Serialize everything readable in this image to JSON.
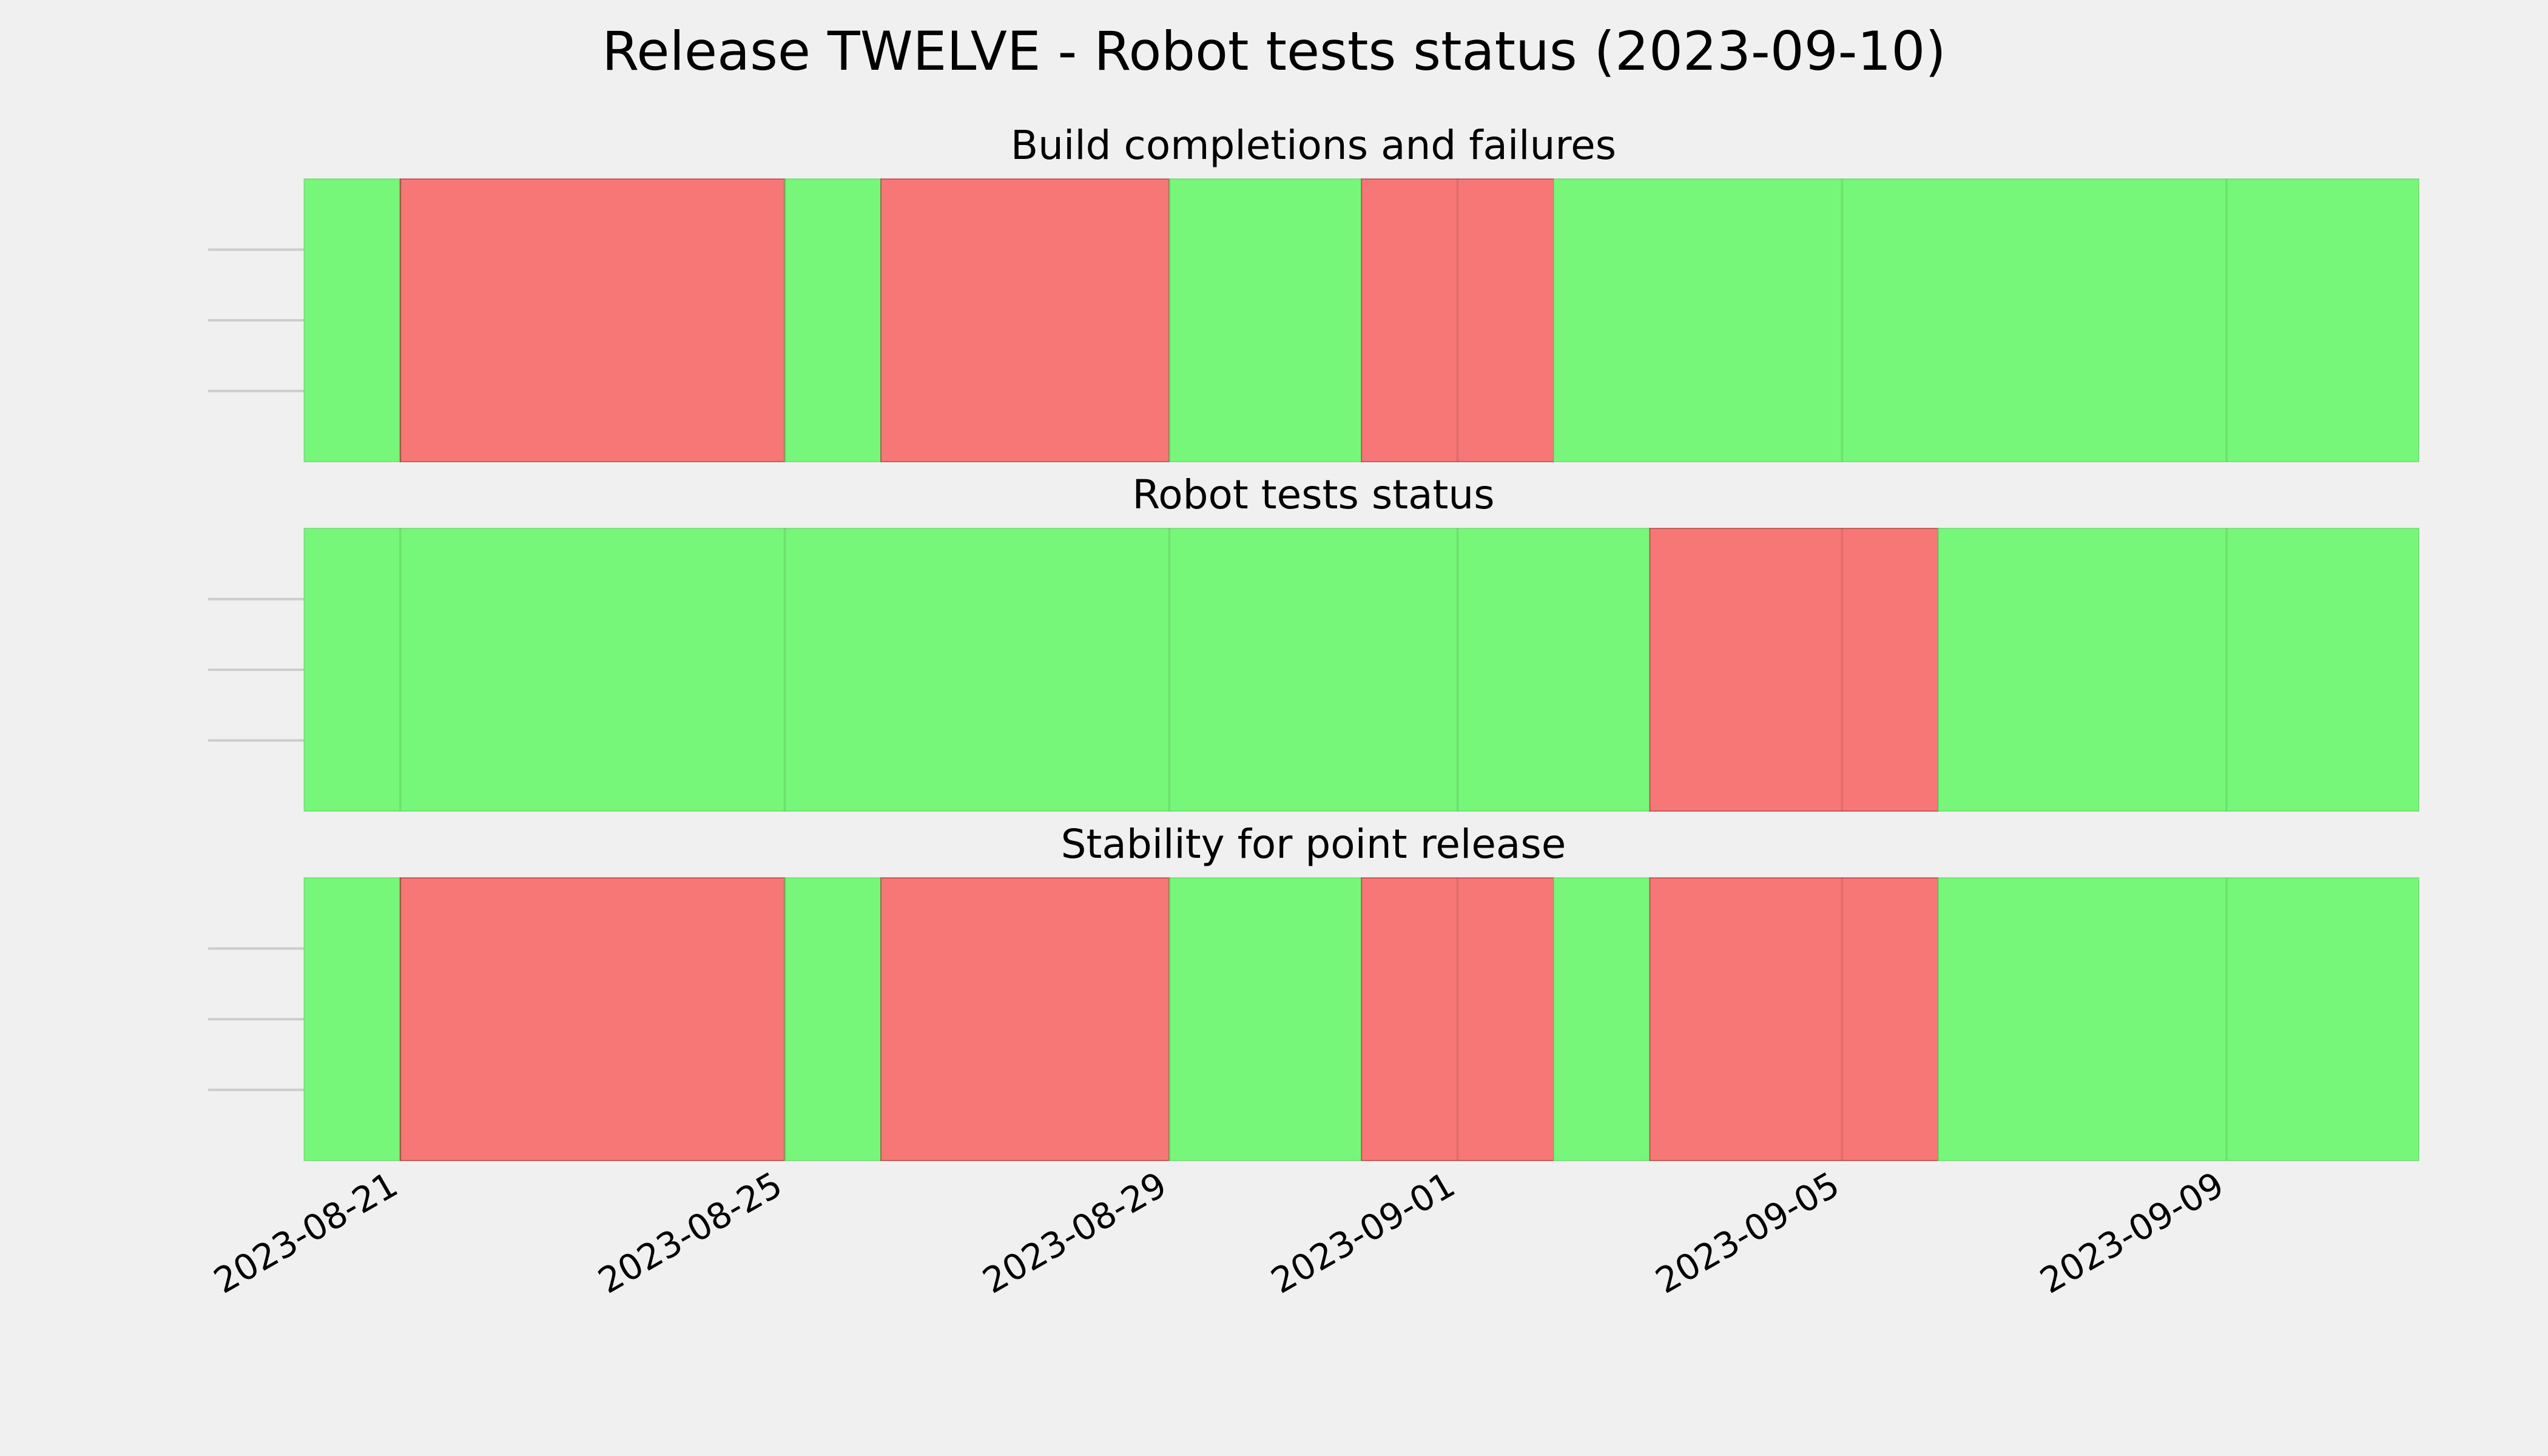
{
  "chart_data": {
    "type": "timeline",
    "title": "Release TWELVE - Robot tests status (2023-09-10)",
    "x_start": "2023-08-20",
    "x_end": "2023-09-10",
    "x_range_padded": [
      "2023-08-19",
      "2023-09-11"
    ],
    "status_colors": {
      "pass": "#77f779",
      "fail": "#f77777"
    },
    "grid_color": "#cccccc",
    "grid": true,
    "x_ticks": [
      "2023-08-21",
      "2023-08-25",
      "2023-08-29",
      "2023-09-01",
      "2023-09-05",
      "2023-09-09"
    ],
    "panels": [
      {
        "title": "Build completions and failures",
        "days": [
          "pass",
          "fail",
          "fail",
          "fail",
          "fail",
          "pass",
          "fail",
          "fail",
          "fail",
          "pass",
          "pass",
          "fail",
          "fail",
          "pass",
          "pass",
          "pass",
          "pass",
          "pass",
          "pass",
          "pass",
          "pass",
          "pass"
        ]
      },
      {
        "title": "Robot tests status",
        "days": [
          "pass",
          "pass",
          "pass",
          "pass",
          "pass",
          "pass",
          "pass",
          "pass",
          "pass",
          "pass",
          "pass",
          "pass",
          "pass",
          "pass",
          "fail",
          "fail",
          "fail",
          "pass",
          "pass",
          "pass",
          "pass",
          "pass"
        ]
      },
      {
        "title": "Stability for point release",
        "days": [
          "pass",
          "fail",
          "fail",
          "fail",
          "fail",
          "pass",
          "fail",
          "fail",
          "fail",
          "pass",
          "pass",
          "fail",
          "fail",
          "pass",
          "fail",
          "fail",
          "fail",
          "pass",
          "pass",
          "pass",
          "pass",
          "pass"
        ]
      }
    ]
  }
}
